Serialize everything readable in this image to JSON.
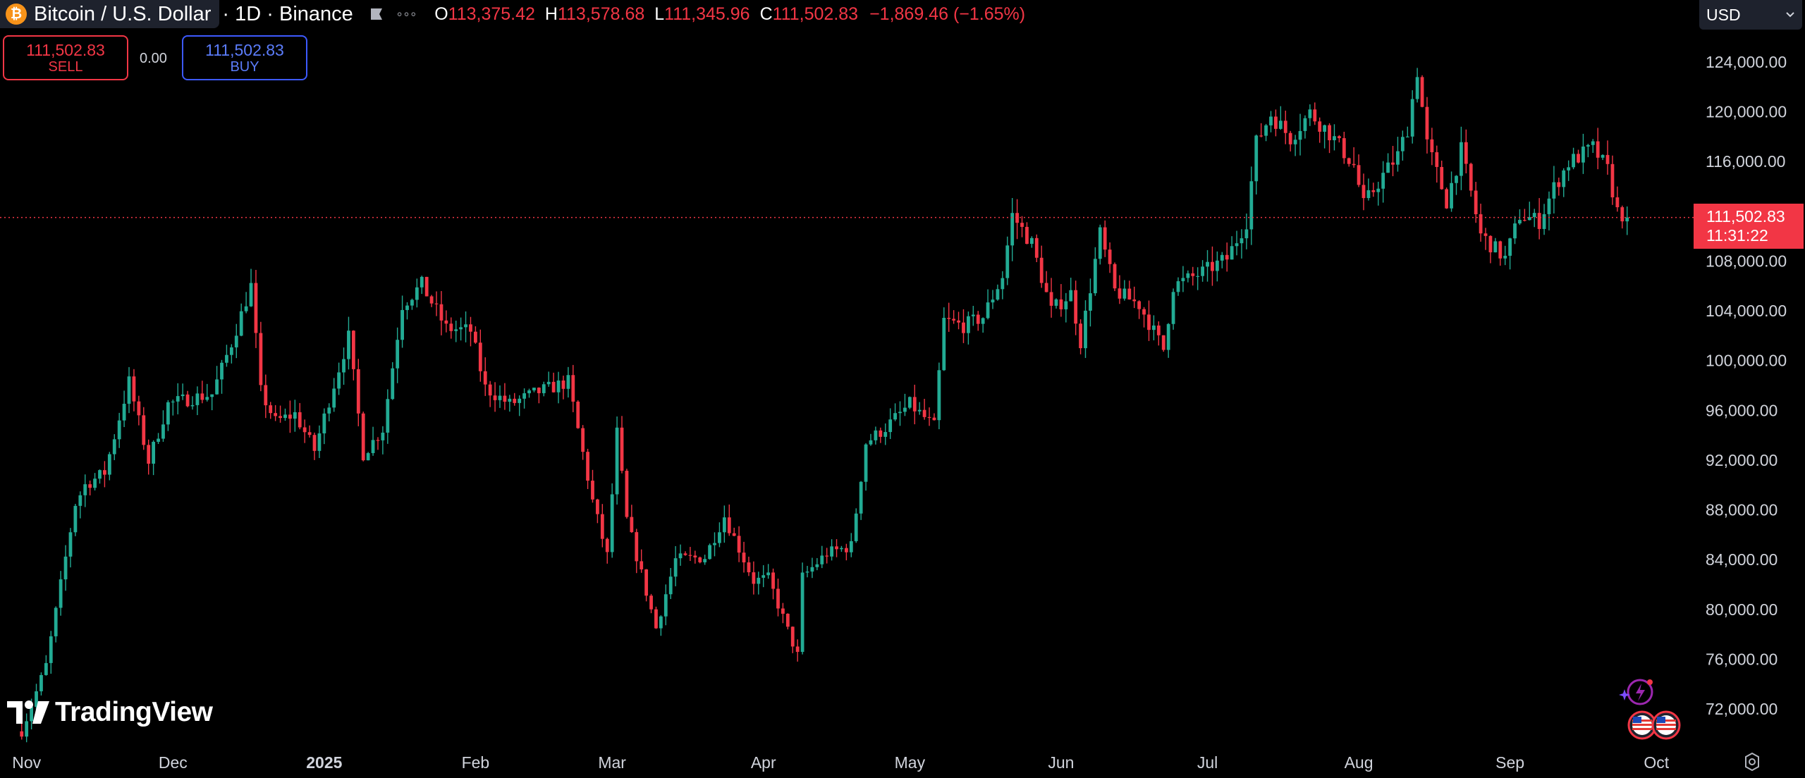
{
  "header": {
    "symbol_title": "Bitcoin / U.S. Dollar",
    "interval_exchange": "· 1D · Binance",
    "coin_icon": "bitcoin-icon",
    "flag_icon": "flag-icon",
    "more_icon": "more-dots-icon",
    "ohlc": {
      "open_key": "O",
      "open": "113,375.42",
      "high_key": "H",
      "high": "113,578.68",
      "low_key": "L",
      "low": "111,345.96",
      "close_key": "C",
      "close": "111,502.83",
      "change": "−1,869.46 (−1.65%)"
    }
  },
  "trade": {
    "sell_price": "111,502.83",
    "sell_label": "SELL",
    "spread": "0.00",
    "buy_price": "111,502.83",
    "buy_label": "BUY"
  },
  "currency": {
    "selected": "USD",
    "chevron_icon": "chevron-down-icon"
  },
  "last_price": {
    "value": "111,502.83",
    "countdown": "11:31:22"
  },
  "watermark": {
    "text": "TradingView",
    "logo_icon": "tradingview-logo-icon"
  },
  "colors": {
    "up": "#22ab94",
    "down": "#f23645",
    "background": "#000000",
    "buy": "#3d5afe"
  },
  "chart_data": {
    "type": "candlestick",
    "ylim": [
      70000,
      126000
    ],
    "y_ticks": [
      {
        "value": 124000,
        "label": "124,000.00"
      },
      {
        "value": 120000,
        "label": "120,000.00"
      },
      {
        "value": 116000,
        "label": "116,000.00"
      },
      {
        "value": 108000,
        "label": "108,000.00"
      },
      {
        "value": 104000,
        "label": "104,000.00"
      },
      {
        "value": 100000,
        "label": "100,000.00"
      },
      {
        "value": 96000,
        "label": "96,000.00"
      },
      {
        "value": 92000,
        "label": "92,000.00"
      },
      {
        "value": 88000,
        "label": "88,000.00"
      },
      {
        "value": 84000,
        "label": "84,000.00"
      },
      {
        "value": 80000,
        "label": "80,000.00"
      },
      {
        "value": 76000,
        "label": "76,000.00"
      },
      {
        "value": 72000,
        "label": "72,000.00"
      }
    ],
    "x_start": "2024-10-28",
    "x_end": "2025-10-04",
    "x_ticks": [
      {
        "date": "2024-11-01",
        "label": "Nov",
        "bold": false
      },
      {
        "date": "2024-12-01",
        "label": "Dec",
        "bold": false
      },
      {
        "date": "2025-01-01",
        "label": "2025",
        "bold": true
      },
      {
        "date": "2025-02-01",
        "label": "Feb",
        "bold": false
      },
      {
        "date": "2025-03-01",
        "label": "Mar",
        "bold": false
      },
      {
        "date": "2025-04-01",
        "label": "Apr",
        "bold": false
      },
      {
        "date": "2025-05-01",
        "label": "May",
        "bold": false
      },
      {
        "date": "2025-06-01",
        "label": "Jun",
        "bold": false
      },
      {
        "date": "2025-07-01",
        "label": "Jul",
        "bold": false
      },
      {
        "date": "2025-08-01",
        "label": "Aug",
        "bold": false
      },
      {
        "date": "2025-09-01",
        "label": "Sep",
        "bold": false
      },
      {
        "date": "2025-10-01",
        "label": "Oct",
        "bold": false
      }
    ],
    "last_price": 111502.83,
    "close_series": [
      {
        "date": "2024-10-31",
        "close": 70200
      },
      {
        "date": "2024-11-05",
        "close": 75500
      },
      {
        "date": "2024-11-11",
        "close": 88500
      },
      {
        "date": "2024-11-13",
        "close": 90000
      },
      {
        "date": "2024-11-17",
        "close": 91000
      },
      {
        "date": "2024-11-22",
        "close": 98300
      },
      {
        "date": "2024-11-26",
        "close": 91900
      },
      {
        "date": "2024-11-30",
        "close": 96500
      },
      {
        "date": "2024-12-05",
        "close": 97000
      },
      {
        "date": "2024-12-09",
        "close": 97300
      },
      {
        "date": "2024-12-13",
        "close": 101400
      },
      {
        "date": "2024-12-17",
        "close": 106000
      },
      {
        "date": "2024-12-19",
        "close": 97500
      },
      {
        "date": "2024-12-22",
        "close": 95100
      },
      {
        "date": "2024-12-26",
        "close": 95700
      },
      {
        "date": "2024-12-30",
        "close": 92800
      },
      {
        "date": "2025-01-03",
        "close": 98100
      },
      {
        "date": "2025-01-06",
        "close": 101900
      },
      {
        "date": "2025-01-09",
        "close": 92500
      },
      {
        "date": "2025-01-13",
        "close": 94500
      },
      {
        "date": "2025-01-17",
        "close": 104500
      },
      {
        "date": "2025-01-21",
        "close": 106100
      },
      {
        "date": "2025-01-26",
        "close": 102600
      },
      {
        "date": "2025-01-31",
        "close": 102400
      },
      {
        "date": "2025-02-03",
        "close": 97800
      },
      {
        "date": "2025-02-08",
        "close": 96500
      },
      {
        "date": "2025-02-14",
        "close": 97500
      },
      {
        "date": "2025-02-20",
        "close": 98300
      },
      {
        "date": "2025-02-25",
        "close": 88700
      },
      {
        "date": "2025-02-28",
        "close": 84300
      },
      {
        "date": "2025-03-02",
        "close": 94200
      },
      {
        "date": "2025-03-04",
        "close": 87200
      },
      {
        "date": "2025-03-10",
        "close": 78500
      },
      {
        "date": "2025-03-14",
        "close": 84000
      },
      {
        "date": "2025-03-20",
        "close": 84200
      },
      {
        "date": "2025-03-24",
        "close": 87500
      },
      {
        "date": "2025-03-30",
        "close": 82300
      },
      {
        "date": "2025-04-02",
        "close": 82500
      },
      {
        "date": "2025-04-06",
        "close": 78300
      },
      {
        "date": "2025-04-08",
        "close": 76300
      },
      {
        "date": "2025-04-09",
        "close": 82600
      },
      {
        "date": "2025-04-14",
        "close": 84500
      },
      {
        "date": "2025-04-19",
        "close": 85100
      },
      {
        "date": "2025-04-22",
        "close": 93400
      },
      {
        "date": "2025-04-26",
        "close": 94600
      },
      {
        "date": "2025-05-01",
        "close": 96500
      },
      {
        "date": "2025-05-06",
        "close": 94700
      },
      {
        "date": "2025-05-08",
        "close": 103200
      },
      {
        "date": "2025-05-12",
        "close": 102800
      },
      {
        "date": "2025-05-16",
        "close": 103500
      },
      {
        "date": "2025-05-20",
        "close": 106800
      },
      {
        "date": "2025-05-22",
        "close": 111700
      },
      {
        "date": "2025-05-26",
        "close": 109400
      },
      {
        "date": "2025-05-30",
        "close": 104000
      },
      {
        "date": "2025-06-03",
        "close": 105400
      },
      {
        "date": "2025-06-05",
        "close": 101500
      },
      {
        "date": "2025-06-09",
        "close": 110200
      },
      {
        "date": "2025-06-12",
        "close": 105600
      },
      {
        "date": "2025-06-17",
        "close": 104500
      },
      {
        "date": "2025-06-22",
        "close": 100900
      },
      {
        "date": "2025-06-24",
        "close": 106000
      },
      {
        "date": "2025-06-30",
        "close": 107100
      },
      {
        "date": "2025-07-05",
        "close": 108200
      },
      {
        "date": "2025-07-09",
        "close": 111200
      },
      {
        "date": "2025-07-11",
        "close": 117500
      },
      {
        "date": "2025-07-14",
        "close": 119800
      },
      {
        "date": "2025-07-18",
        "close": 117900
      },
      {
        "date": "2025-07-22",
        "close": 119900
      },
      {
        "date": "2025-07-26",
        "close": 118300
      },
      {
        "date": "2025-07-31",
        "close": 115700
      },
      {
        "date": "2025-08-02",
        "close": 112500
      },
      {
        "date": "2025-08-06",
        "close": 114900
      },
      {
        "date": "2025-08-09",
        "close": 116500
      },
      {
        "date": "2025-08-11",
        "close": 118700
      },
      {
        "date": "2025-08-13",
        "close": 123300
      },
      {
        "date": "2025-08-15",
        "close": 117400
      },
      {
        "date": "2025-08-19",
        "close": 112800
      },
      {
        "date": "2025-08-22",
        "close": 116900
      },
      {
        "date": "2025-08-26",
        "close": 110100
      },
      {
        "date": "2025-08-31",
        "close": 108200
      },
      {
        "date": "2025-09-03",
        "close": 111700
      },
      {
        "date": "2025-09-07",
        "close": 111200
      },
      {
        "date": "2025-09-10",
        "close": 113900
      },
      {
        "date": "2025-09-13",
        "close": 115900
      },
      {
        "date": "2025-09-18",
        "close": 117100
      },
      {
        "date": "2025-09-21",
        "close": 115300
      },
      {
        "date": "2025-09-23",
        "close": 112000
      },
      {
        "date": "2025-09-25",
        "close": 111500
      }
    ]
  }
}
